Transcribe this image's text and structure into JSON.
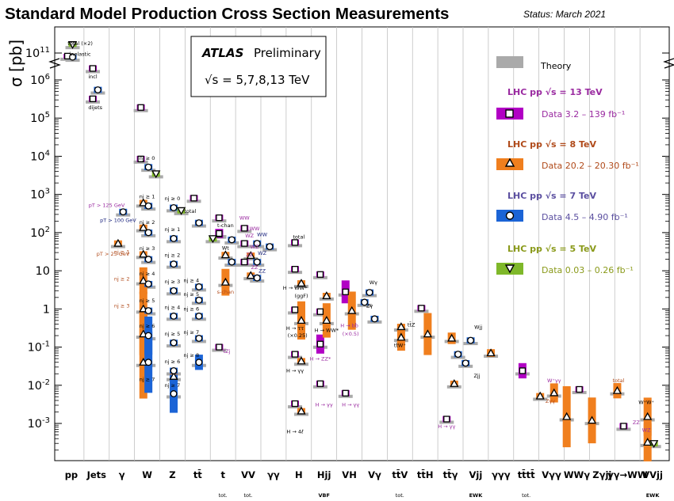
{
  "header": {
    "title": "Standard Model Production Cross Section Measurements",
    "status": "Status: March 2021"
  },
  "colors": {
    "13": "#b100c4",
    "8": "#f07f1e",
    "7": "#1b64d6",
    "5": "#7fb82a",
    "theory": "#aaaaaa",
    "label13": "#9a2aa0",
    "label8": "#b04a1a",
    "label7": "#5b4fa0",
    "label5": "#8a9a1a"
  },
  "chart_data": {
    "type": "scatter",
    "title": "Standard Model Production Cross Section Measurements",
    "subtitle": "Status: March 2021",
    "ylabel": "σ [pb]",
    "yscale": "log",
    "ylim": [
      0.00015,
      300000000000.0
    ],
    "y_tick_labels": [
      "10^11",
      "10^6",
      "10^5",
      "10^4",
      "10^3",
      "10^2",
      "10",
      "1",
      "10^-1",
      "10^-2",
      "10^-3"
    ],
    "atlas_box": {
      "line1": "ATLAS",
      "line2": "Preliminary",
      "line3": "√s = 5,7,8,13 TeV"
    },
    "categories": [
      {
        "label": "pp",
        "sub": ""
      },
      {
        "label": "Jets",
        "sub": ""
      },
      {
        "label": "γ",
        "sub": ""
      },
      {
        "label": "W",
        "sub": ""
      },
      {
        "label": "Z",
        "sub": ""
      },
      {
        "label": "tt̄",
        "sub": ""
      },
      {
        "label": "t",
        "sub": "tot."
      },
      {
        "label": "VV",
        "sub": "tot."
      },
      {
        "label": "γγ",
        "sub": ""
      },
      {
        "label": "H",
        "sub": ""
      },
      {
        "label": "Hjj",
        "sub": "VBF"
      },
      {
        "label": "VH",
        "sub": ""
      },
      {
        "label": "Vγ",
        "sub": ""
      },
      {
        "label": "tt̄V",
        "sub": "tot."
      },
      {
        "label": "tt̄H",
        "sub": ""
      },
      {
        "label": "tt̄γ",
        "sub": ""
      },
      {
        "label": "Vjj",
        "sub": "EWK"
      },
      {
        "label": "γγγ",
        "sub": ""
      },
      {
        "label": "tt̄tt̄",
        "sub": "tot."
      },
      {
        "label": "Vγγ",
        "sub": ""
      },
      {
        "label": "WWγ",
        "sub": ""
      },
      {
        "label": "Zγjj",
        "sub": ""
      },
      {
        "label": "γγ→WW",
        "sub": ""
      },
      {
        "label": "VVjj",
        "sub": "EWK"
      }
    ],
    "legend": {
      "theory": "Theory",
      "entries": [
        {
          "energy": "13",
          "title": "LHC pp √s = 13 TeV",
          "data": "Data 3.2 – 139 fb⁻¹"
        },
        {
          "energy": "8",
          "title": "LHC pp √s = 8 TeV",
          "data": "Data 20.2 – 20.30 fb⁻¹"
        },
        {
          "energy": "7",
          "title": "LHC pp √s = 7 TeV",
          "data": "Data 4.5 – 4.90 fb⁻¹"
        },
        {
          "energy": "5",
          "title": "LHC pp √s = 5 TeV",
          "data": "Data 0.03 – 0.26 fb⁻¹"
        }
      ]
    },
    "series": [
      {
        "energy": "13",
        "points": [
          {
            "x": 0.35,
            "y": 78000000000.0
          },
          {
            "x": 1.35,
            "y": 2000000.0
          },
          {
            "x": 1.35,
            "y": 320000.0
          },
          {
            "x": 3.25,
            "y": 190000.0
          },
          {
            "x": 3.25,
            "y": 8500.0
          },
          {
            "x": 5.35,
            "y": 800
          },
          {
            "x": 6.35,
            "y": 245
          },
          {
            "x": 6.35,
            "y": 92
          },
          {
            "x": 6.35,
            "y": 95,
            "err": 0.12
          },
          {
            "x": 6.35,
            "y": 0.1
          },
          {
            "x": 7.35,
            "y": 130
          },
          {
            "x": 7.35,
            "y": 52
          },
          {
            "x": 7.35,
            "y": 17
          },
          {
            "x": 9.35,
            "y": 55
          },
          {
            "x": 9.35,
            "y": 11
          },
          {
            "x": 9.35,
            "y": 0.95
          },
          {
            "x": 9.35,
            "y": 0.065
          },
          {
            "x": 9.35,
            "y": 0.0033
          },
          {
            "x": 10.35,
            "y": 8
          },
          {
            "x": 10.35,
            "y": 0.85
          },
          {
            "x": 10.35,
            "y": 0.12,
            "err": 0.25
          },
          {
            "x": 10.35,
            "y": 0.011
          },
          {
            "x": 11.35,
            "y": 2.8,
            "err": 0.3
          },
          {
            "x": 11.35,
            "y": 0.0062
          },
          {
            "x": 14.35,
            "y": 1.05
          },
          {
            "x": 15.35,
            "y": 0.0013
          },
          {
            "x": 18.35,
            "y": 0.024,
            "err": 0.2
          },
          {
            "x": 20.6,
            "y": 0.0078
          },
          {
            "x": 22.35,
            "y": 0.00085
          }
        ]
      },
      {
        "energy": "8",
        "points": [
          {
            "x": 2.35,
            "y": 52
          },
          {
            "x": 3.35,
            "y": 600
          },
          {
            "x": 3.35,
            "y": 135
          },
          {
            "x": 3.35,
            "y": 27
          },
          {
            "x": 3.35,
            "y": 5.5,
            "err": 0.35
          },
          {
            "x": 3.35,
            "y": 1.0,
            "err": 0.45
          },
          {
            "x": 3.35,
            "y": 0.22,
            "err": 0.55
          },
          {
            "x": 3.35,
            "y": 0.04,
            "err": 0.95
          },
          {
            "x": 4.55,
            "y": 0.017
          },
          {
            "x": 6.6,
            "y": 26
          },
          {
            "x": 6.6,
            "y": 5.0,
            "err": 0.35
          },
          {
            "x": 7.6,
            "y": 25
          },
          {
            "x": 7.6,
            "y": 7.5
          },
          {
            "x": 9.6,
            "y": 4.7
          },
          {
            "x": 9.6,
            "y": 0.5,
            "err": 0.5
          },
          {
            "x": 9.6,
            "y": 0.043
          },
          {
            "x": 9.6,
            "y": 0.0021
          },
          {
            "x": 10.6,
            "y": 2.2
          },
          {
            "x": 10.6,
            "y": 0.5,
            "err": 0.45
          },
          {
            "x": 11.6,
            "y": 0.9,
            "err": 0.5
          },
          {
            "x": 13.55,
            "y": 0.34
          },
          {
            "x": 13.55,
            "y": 0.18,
            "err": 0.35
          },
          {
            "x": 14.6,
            "y": 0.22,
            "err": 0.55
          },
          {
            "x": 15.55,
            "y": 0.17,
            "err": 0.15
          },
          {
            "x": 15.65,
            "y": 0.011
          },
          {
            "x": 17.1,
            "y": 0.07,
            "err": 0.1
          },
          {
            "x": 19.05,
            "y": 0.0052
          },
          {
            "x": 19.6,
            "y": 0.0063,
            "err": 0.25
          },
          {
            "x": 20.1,
            "y": 0.0015,
            "err": 0.8
          },
          {
            "x": 21.1,
            "y": 0.0012,
            "err": 0.6
          },
          {
            "x": 22.1,
            "y": 0.0072,
            "err": 0.2
          },
          {
            "x": 23.3,
            "y": 0.0015,
            "err": 0.5
          },
          {
            "x": 23.3,
            "y": 0.00032,
            "err": 0.5
          }
        ]
      },
      {
        "energy": "7",
        "points": [
          {
            "x": 0.55,
            "y": 72000000000.0
          },
          {
            "x": 1.55,
            "y": 550000.0
          },
          {
            "x": 2.55,
            "y": 350
          },
          {
            "x": 3.55,
            "y": 5200.0
          },
          {
            "x": 3.55,
            "y": 500
          },
          {
            "x": 3.55,
            "y": 100
          },
          {
            "x": 3.55,
            "y": 20
          },
          {
            "x": 3.55,
            "y": 4.5
          },
          {
            "x": 3.55,
            "y": 0.9
          },
          {
            "x": 3.55,
            "y": 0.2,
            "err": 0.5
          },
          {
            "x": 3.55,
            "y": 0.04,
            "err": 0.8
          },
          {
            "x": 4.55,
            "y": 450
          },
          {
            "x": 4.55,
            "y": 70
          },
          {
            "x": 4.55,
            "y": 15
          },
          {
            "x": 4.55,
            "y": 3
          },
          {
            "x": 4.55,
            "y": 0.65
          },
          {
            "x": 4.55,
            "y": 0.13
          },
          {
            "x": 4.55,
            "y": 0.024
          },
          {
            "x": 4.55,
            "y": 0.006,
            "err": 0.5
          },
          {
            "x": 5.55,
            "y": 180
          },
          {
            "x": 5.55,
            "y": 3.8
          },
          {
            "x": 5.55,
            "y": 1.7
          },
          {
            "x": 5.55,
            "y": 0.65
          },
          {
            "x": 5.55,
            "y": 0.17
          },
          {
            "x": 5.55,
            "y": 0.04,
            "err": 0.2
          },
          {
            "x": 6.85,
            "y": 65
          },
          {
            "x": 6.85,
            "y": 17
          },
          {
            "x": 7.85,
            "y": 52
          },
          {
            "x": 7.85,
            "y": 17
          },
          {
            "x": 7.85,
            "y": 6.5
          },
          {
            "x": 8.35,
            "y": 43
          },
          {
            "x": 12.1,
            "y": 1.5
          },
          {
            "x": 12.3,
            "y": 2.7
          },
          {
            "x": 12.5,
            "y": 0.55
          },
          {
            "x": 15.8,
            "y": 0.065
          },
          {
            "x": 16.1,
            "y": 0.038
          },
          {
            "x": 16.3,
            "y": 0.15
          }
        ]
      },
      {
        "energy": "5",
        "points": [
          {
            "x": 0.55,
            "y": 200000000000.0
          },
          {
            "x": 3.85,
            "y": 3500.0
          },
          {
            "x": 4.85,
            "y": 380
          },
          {
            "x": 6.1,
            "y": 70
          },
          {
            "x": 23.55,
            "y": 0.0003
          }
        ]
      }
    ]
  },
  "annotations": [
    {
      "x": 0.85,
      "y": 190000000000.0,
      "text": "total (×2)",
      "c": "#000"
    },
    {
      "x": 0.85,
      "y": 80000000000.0,
      "text": "inelastic",
      "c": "#000"
    },
    {
      "x": 1.35,
      "y": 1100000.0,
      "text": "incl",
      "c": "#000"
    },
    {
      "x": 1.45,
      "y": 170000.0,
      "text": "dijets",
      "c": "#000"
    },
    {
      "x": 2.15,
      "y": 25,
      "text": "pT > 25 GeV",
      "c": "#b04a1a"
    },
    {
      "x": 1.9,
      "y": 470,
      "text": "pT > 125 GeV",
      "c": "#9a2aa0"
    },
    {
      "x": 2.35,
      "y": 190,
      "text": "pT > 100 GeV",
      "c": "#1a237e"
    },
    {
      "x": 2.5,
      "y": 28,
      "text": "nj ≥ 1",
      "c": "#b04a1a"
    },
    {
      "x": 2.5,
      "y": 5.5,
      "text": "nj ≥ 2",
      "c": "#b04a1a"
    },
    {
      "x": 2.5,
      "y": 1.1,
      "text": "nj ≥ 3",
      "c": "#b04a1a"
    },
    {
      "x": 3.5,
      "y": 8000,
      "text": "nj ≥ 0",
      "c": "#000"
    },
    {
      "x": 3.5,
      "y": 800,
      "text": "nj ≥ 1",
      "c": "#000"
    },
    {
      "x": 3.5,
      "y": 170,
      "text": "nj ≥ 2",
      "c": "#000"
    },
    {
      "x": 3.5,
      "y": 35,
      "text": "nj ≥ 3",
      "c": "#000"
    },
    {
      "x": 3.5,
      "y": 7.5,
      "text": "nj ≥ 4",
      "c": "#000"
    },
    {
      "x": 3.5,
      "y": 1.5,
      "text": "nj ≥ 5",
      "c": "#000"
    },
    {
      "x": 3.5,
      "y": 0.32,
      "text": "nj ≥ 6",
      "c": "#000"
    },
    {
      "x": 3.5,
      "y": 0.013,
      "text": "nj ≥ 7",
      "c": "#000"
    },
    {
      "x": 4.5,
      "y": 700,
      "text": "nj ≥ 0",
      "c": "#000"
    },
    {
      "x": 4.5,
      "y": 110,
      "text": "nj ≥ 1",
      "c": "#000"
    },
    {
      "x": 4.5,
      "y": 23,
      "text": "nj ≥ 2",
      "c": "#000"
    },
    {
      "x": 4.5,
      "y": 4.7,
      "text": "nj ≥ 3",
      "c": "#000"
    },
    {
      "x": 4.5,
      "y": 1.0,
      "text": "nj ≥ 4",
      "c": "#000"
    },
    {
      "x": 4.5,
      "y": 0.2,
      "text": "nj ≥ 5",
      "c": "#000"
    },
    {
      "x": 4.5,
      "y": 0.038,
      "text": "nj ≥ 6",
      "c": "#000"
    },
    {
      "x": 4.5,
      "y": 0.009,
      "text": "nj ≥ 7",
      "c": "#000"
    },
    {
      "x": 5.2,
      "y": 330,
      "text": "total",
      "c": "#000"
    },
    {
      "x": 5.25,
      "y": 5.0,
      "text": "nj ≥ 4",
      "c": "#000"
    },
    {
      "x": 5.25,
      "y": 2.2,
      "text": "nj ≥ 5",
      "c": "#000"
    },
    {
      "x": 5.25,
      "y": 0.9,
      "text": "nj ≥ 6",
      "c": "#000"
    },
    {
      "x": 5.25,
      "y": 0.22,
      "text": "nj ≥ 7",
      "c": "#000"
    },
    {
      "x": 5.25,
      "y": 0.055,
      "text": "nj ≥ 8",
      "c": "#000"
    },
    {
      "x": 6.6,
      "y": 140,
      "text": "t-chan",
      "c": "#000"
    },
    {
      "x": 6.6,
      "y": 36,
      "text": "Wt",
      "c": "#000"
    },
    {
      "x": 6.6,
      "y": 2.5,
      "text": "s-chan",
      "c": "#b04a1a"
    },
    {
      "x": 6.65,
      "y": 0.07,
      "text": "tZj",
      "c": "#9a2aa0"
    },
    {
      "x": 7.35,
      "y": 220,
      "text": "WW",
      "c": "#9a2aa0"
    },
    {
      "x": 7.55,
      "y": 75,
      "text": "WZ",
      "c": "#9a2aa0"
    },
    {
      "x": 7.55,
      "y": 24,
      "text": "ZZ",
      "c": "#9a2aa0"
    },
    {
      "x": 7.75,
      "y": 115,
      "text": "WW",
      "c": "#9a2aa0"
    },
    {
      "x": 7.75,
      "y": 38,
      "text": "WZ",
      "c": "#9a2aa0"
    },
    {
      "x": 7.75,
      "y": 11,
      "text": "ZZ",
      "c": "#9a2aa0"
    },
    {
      "x": 8.05,
      "y": 80,
      "text": "WW",
      "c": "#1a237e"
    },
    {
      "x": 8.05,
      "y": 26,
      "text": "WZ",
      "c": "#1a237e"
    },
    {
      "x": 8.05,
      "y": 9,
      "text": "ZZ",
      "c": "#1a237e"
    },
    {
      "x": 9.5,
      "y": 70,
      "text": "total",
      "c": "#000"
    },
    {
      "x": 9.35,
      "y": 3.2,
      "text": "H → WW*",
      "c": "#000"
    },
    {
      "x": 9.6,
      "y": 2.0,
      "text": "(ggF)",
      "c": "#000"
    },
    {
      "x": 9.35,
      "y": 0.28,
      "text": "H → ττ",
      "c": "#000"
    },
    {
      "x": 9.45,
      "y": 0.18,
      "text": "(×0.25)",
      "c": "#000"
    },
    {
      "x": 9.35,
      "y": 0.022,
      "text": "H → γγ",
      "c": "#000"
    },
    {
      "x": 9.35,
      "y": 0.00055,
      "text": "H → 4ℓ",
      "c": "#000"
    },
    {
      "x": 10.6,
      "y": 0.25,
      "text": "H → WW*",
      "c": "#000"
    },
    {
      "x": 10.35,
      "y": 0.045,
      "text": "H → ZZ*",
      "c": "#9a2aa0"
    },
    {
      "x": 10.5,
      "y": 0.0028,
      "text": "H → γγ",
      "c": "#9a2aa0"
    },
    {
      "x": 11.5,
      "y": 0.33,
      "text": "H → bb̄",
      "c": "#9a2aa0"
    },
    {
      "x": 11.55,
      "y": 0.2,
      "text": "(×0.5)",
      "c": "#9a2aa0"
    },
    {
      "x": 11.55,
      "y": 0.0028,
      "text": "H → γγ",
      "c": "#9a2aa0"
    },
    {
      "x": 12.45,
      "y": 4.5,
      "text": "Wγ",
      "c": "#000"
    },
    {
      "x": 12.3,
      "y": 1.1,
      "text": "Zγ",
      "c": "#000"
    },
    {
      "x": 13.5,
      "y": 0.1,
      "text": "tt̄W⁺",
      "c": "#000"
    },
    {
      "x": 13.95,
      "y": 0.35,
      "text": "tt̄Z",
      "c": "#000"
    },
    {
      "x": 15.35,
      "y": 0.00075,
      "text": "H → γγ",
      "c": "#9a2aa0"
    },
    {
      "x": 16.6,
      "y": 0.3,
      "text": "Wjj",
      "c": "#000"
    },
    {
      "x": 16.55,
      "y": 0.016,
      "text": "Zjj",
      "c": "#000"
    },
    {
      "x": 19.6,
      "y": 0.012,
      "text": "W⁺γγ",
      "c": "#9a2aa0"
    },
    {
      "x": 19.45,
      "y": 0.0035,
      "text": "Zγγ",
      "c": "#b04a1a"
    },
    {
      "x": 22.15,
      "y": 0.012,
      "text": "total",
      "c": "#b04a1a"
    },
    {
      "x": 23.25,
      "y": 0.0032,
      "text": "W⁺W⁺",
      "c": "#000"
    },
    {
      "x": 22.85,
      "y": 0.00095,
      "text": "ZZ",
      "c": "#9a2aa0"
    },
    {
      "x": 23.25,
      "y": 0.0006,
      "text": "WZ",
      "c": "#9a2aa0"
    }
  ]
}
